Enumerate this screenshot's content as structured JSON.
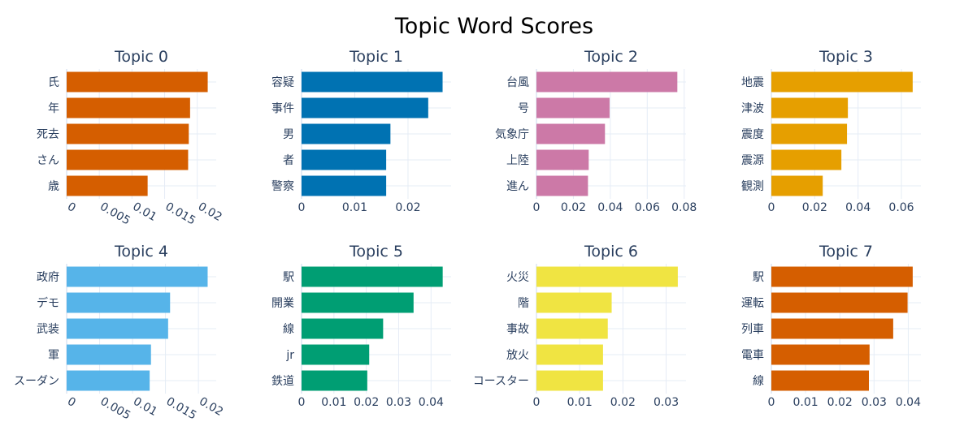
{
  "title": "Topic Word Scores",
  "chart_data": [
    {
      "type": "bar",
      "orientation": "horizontal",
      "title": "Topic 0",
      "color": "#D55E00",
      "categories": [
        "氏",
        "年",
        "死去",
        "さん",
        "歳"
      ],
      "values": [
        0.0216,
        0.0189,
        0.0187,
        0.0186,
        0.0124
      ],
      "xlim": [
        0,
        0.0229
      ],
      "xticks": [
        "0",
        "0.005",
        "0.01",
        "0.015",
        "0.02"
      ],
      "xtick_values": [
        0,
        0.005,
        0.01,
        0.015,
        0.02
      ],
      "xtick_rotated": true
    },
    {
      "type": "bar",
      "orientation": "horizontal",
      "title": "Topic 1",
      "color": "#0072B2",
      "categories": [
        "容疑",
        "事件",
        "男",
        "者",
        "警察"
      ],
      "values": [
        0.0265,
        0.0238,
        0.0167,
        0.0159,
        0.0159
      ],
      "xlim": [
        0,
        0.0281
      ],
      "xticks": [
        "0",
        "0.01",
        "0.02"
      ],
      "xtick_values": [
        0,
        0.01,
        0.02
      ],
      "xtick_rotated": false
    },
    {
      "type": "bar",
      "orientation": "horizontal",
      "title": "Topic 2",
      "color": "#CC79A7",
      "categories": [
        "台風",
        "号",
        "気象庁",
        "上陸",
        "進ん"
      ],
      "values": [
        0.0763,
        0.0396,
        0.0371,
        0.0283,
        0.0279
      ],
      "xlim": [
        0,
        0.081
      ],
      "xticks": [
        "0",
        "0.02",
        "0.04",
        "0.06",
        "0.08"
      ],
      "xtick_values": [
        0,
        0.02,
        0.04,
        0.06,
        0.08
      ],
      "xtick_rotated": false
    },
    {
      "type": "bar",
      "orientation": "horizontal",
      "title": "Topic 3",
      "color": "#E69F00",
      "categories": [
        "地震",
        "津波",
        "震度",
        "震源",
        "観測"
      ],
      "values": [
        0.0652,
        0.0353,
        0.0349,
        0.0323,
        0.0237
      ],
      "xlim": [
        0,
        0.069
      ],
      "xticks": [
        "0",
        "0.02",
        "0.04",
        "0.06"
      ],
      "xtick_values": [
        0,
        0.02,
        0.04,
        0.06
      ],
      "xtick_rotated": false
    },
    {
      "type": "bar",
      "orientation": "horizontal",
      "title": "Topic 4",
      "color": "#56B4E9",
      "categories": [
        "政府",
        "デモ",
        "武装",
        "軍",
        "スーダン"
      ],
      "values": [
        0.0214,
        0.0157,
        0.0154,
        0.0128,
        0.0126
      ],
      "xlim": [
        0,
        0.0227
      ],
      "xticks": [
        "0",
        "0.005",
        "0.01",
        "0.015",
        "0.02"
      ],
      "xtick_values": [
        0,
        0.005,
        0.01,
        0.015,
        0.02
      ],
      "xtick_rotated": true
    },
    {
      "type": "bar",
      "orientation": "horizontal",
      "title": "Topic 5",
      "color": "#009E73",
      "categories": [
        "駅",
        "開業",
        "線",
        "jr",
        "鉄道"
      ],
      "values": [
        0.0436,
        0.0346,
        0.0252,
        0.0209,
        0.0203
      ],
      "xlim": [
        0,
        0.0462
      ],
      "xticks": [
        "0",
        "0.01",
        "0.02",
        "0.03",
        "0.04"
      ],
      "xtick_values": [
        0,
        0.01,
        0.02,
        0.03,
        0.04
      ],
      "xtick_rotated": false
    },
    {
      "type": "bar",
      "orientation": "horizontal",
      "title": "Topic 6",
      "color": "#F0E442",
      "categories": [
        "火災",
        "階",
        "事故",
        "放火",
        "コースター"
      ],
      "values": [
        0.0327,
        0.0174,
        0.0165,
        0.0154,
        0.0154
      ],
      "xlim": [
        0,
        0.0346
      ],
      "xticks": [
        "0",
        "0.01",
        "0.02",
        "0.03"
      ],
      "xtick_values": [
        0,
        0.01,
        0.02,
        0.03
      ],
      "xtick_rotated": false
    },
    {
      "type": "bar",
      "orientation": "horizontal",
      "title": "Topic 7",
      "color": "#D55E00",
      "categories": [
        "駅",
        "運転",
        "列車",
        "電車",
        "線"
      ],
      "values": [
        0.0413,
        0.0398,
        0.0356,
        0.0287,
        0.0285
      ],
      "xlim": [
        0,
        0.0437
      ],
      "xticks": [
        "0",
        "0.01",
        "0.02",
        "0.03",
        "0.04"
      ],
      "xtick_values": [
        0,
        0.01,
        0.02,
        0.03,
        0.04
      ],
      "xtick_rotated": false
    }
  ]
}
